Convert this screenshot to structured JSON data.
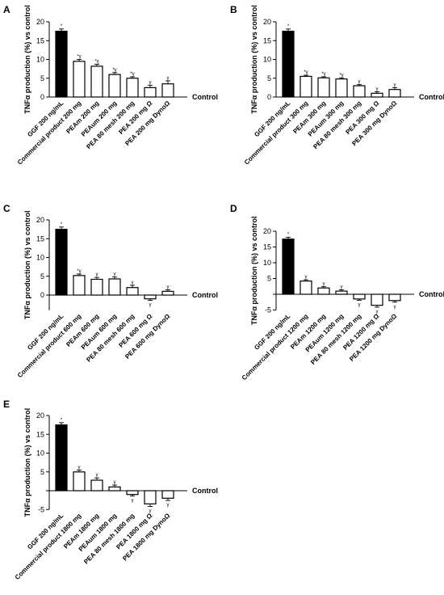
{
  "chart_data": [
    {
      "panel": "A",
      "type": "bar",
      "ylabel": "TNFα production (%) vs control",
      "baseline_label": "Control",
      "yticks": [
        0,
        5,
        10,
        15,
        20
      ],
      "ylim": [
        0,
        20
      ],
      "categories": [
        "GGF 200 ng/mL",
        "Commercial product 200 mg",
        "PEAm 200 mg",
        "PEAum 200 mg",
        "PEA 80 mesh 200 mg",
        "PEA 200 mg Ω",
        "PEA 200 mg DynoΩ"
      ],
      "values": [
        17.5,
        9.5,
        8.2,
        6.0,
        5.0,
        2.5,
        3.5
      ],
      "errors": [
        0.6,
        0.5,
        0.5,
        0.5,
        0.4,
        0.6,
        0.8
      ],
      "significance": [
        "*",
        "*γ",
        "*γ",
        "*γ",
        "*γ",
        "γ",
        "γ"
      ],
      "fills": [
        "#000000",
        "#ffffff",
        "#ffffff",
        "#ffffff",
        "#ffffff",
        "#ffffff",
        "#ffffff"
      ]
    },
    {
      "panel": "B",
      "type": "bar",
      "ylabel": "TNFα production (%) vs control",
      "baseline_label": "Control",
      "yticks": [
        0,
        5,
        10,
        15,
        20
      ],
      "ylim": [
        0,
        20
      ],
      "categories": [
        "GGF 200 ng/mL",
        "Commercial product 300 mg",
        "PEAm 300 mg",
        "PEAum 300 mg",
        "PEA 80 mesh 300 mg",
        "PEA 300 mg Ω",
        "PEA 300 mg DynoΩ"
      ],
      "values": [
        17.5,
        5.5,
        5.1,
        4.8,
        3.0,
        1.0,
        2.0
      ],
      "errors": [
        0.6,
        0.3,
        0.3,
        0.3,
        0.3,
        0.4,
        0.5
      ],
      "significance": [
        "*",
        "*γ",
        "*γ",
        "*γ",
        "γ",
        "γ",
        "γ"
      ],
      "fills": [
        "#000000",
        "#ffffff",
        "#ffffff",
        "#ffffff",
        "#ffffff",
        "#ffffff",
        "#ffffff"
      ]
    },
    {
      "panel": "C",
      "type": "bar",
      "ylabel": "TNFα production (%) vs control",
      "baseline_label": "Control",
      "yticks": [
        0,
        5,
        10,
        15,
        20
      ],
      "ylim": [
        -4,
        20
      ],
      "categories": [
        "GGF 200 ng/mL",
        "Commercial product 600 mg",
        "PEAm 600 mg",
        "PEAum 600 mg",
        "PEA 80 mesh 600 mg",
        "PEA 600 mg Ω",
        "PEA 600 mg DynoΩ"
      ],
      "values": [
        17.5,
        5.2,
        4.2,
        4.3,
        2.0,
        -1.0,
        1.0
      ],
      "errors": [
        0.6,
        0.4,
        0.5,
        0.5,
        0.6,
        0.4,
        0.4
      ],
      "significance": [
        "*",
        "*γ",
        "γ",
        "γ",
        "γ",
        "γ",
        "γ"
      ],
      "fills": [
        "#000000",
        "#ffffff",
        "#ffffff",
        "#ffffff",
        "#ffffff",
        "#ffffff",
        "#ffffff"
      ]
    },
    {
      "panel": "D",
      "type": "bar",
      "ylabel": "TNFα production (%) vs control",
      "baseline_label": "Control",
      "yticks": [
        -5,
        5,
        10,
        15,
        20
      ],
      "ylim": [
        -5,
        20
      ],
      "categories": [
        "GGF 200 ng/mL",
        "Commercial product 1200 mg",
        "PEAm 1200 mg",
        "PEAum 1200 mg",
        "PEA 80 mesh 1200 mg",
        "PEA 1200 mg Ω",
        "PEA 1200 mg DynoΩ"
      ],
      "values": [
        17.5,
        4.2,
        2.0,
        1.0,
        -1.5,
        -3.5,
        -2.0
      ],
      "errors": [
        0.6,
        0.4,
        0.4,
        0.4,
        0.4,
        0.6,
        0.5
      ],
      "significance": [
        "*",
        "γ",
        "γ",
        "γ",
        "γ",
        "γ",
        "γ"
      ],
      "fills": [
        "#000000",
        "#ffffff",
        "#ffffff",
        "#ffffff",
        "#ffffff",
        "#ffffff",
        "#ffffff"
      ]
    },
    {
      "panel": "E",
      "type": "bar",
      "ylabel": "TNFα production (%) vs control",
      "baseline_label": "Control",
      "yticks": [
        -5,
        5,
        10,
        15,
        20
      ],
      "ylim": [
        -5,
        20
      ],
      "categories": [
        "GGF 200 ng/mL",
        "Commercial product 1800 mg",
        "PEAm 1800 mg",
        "PEAum 1800 mg",
        "PEA 80 mesh 1800 mg",
        "PEA 1800 mg Ω",
        "PEA 1800 mg DynoΩ"
      ],
      "values": [
        17.5,
        5.0,
        2.8,
        1.0,
        -1.0,
        -3.5,
        -2.0
      ],
      "errors": [
        0.6,
        0.5,
        0.6,
        0.5,
        0.4,
        0.7,
        0.6
      ],
      "significance": [
        "*",
        "γ",
        "γ",
        "γ",
        "γ",
        "γ",
        "γ"
      ],
      "fills": [
        "#000000",
        "#ffffff",
        "#ffffff",
        "#ffffff",
        "#ffffff",
        "#ffffff",
        "#ffffff"
      ]
    }
  ]
}
